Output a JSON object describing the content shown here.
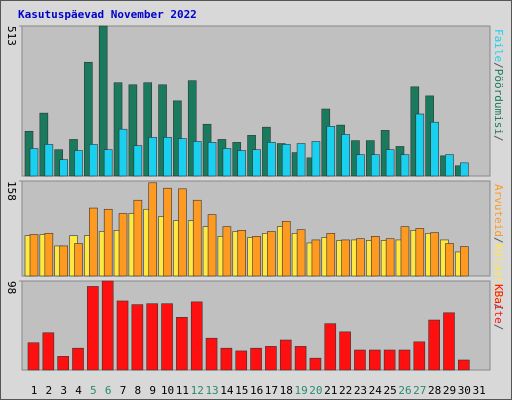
{
  "chart_data": [
    {
      "type": "bar",
      "title": "Kasutuspäevad November 2022",
      "ylim": [
        0,
        513
      ],
      "yticks": [
        513
      ],
      "series": [
        {
          "name": "Pöördumisi",
          "color": "#1a7a5e",
          "values": [
            153,
            215,
            90,
            125,
            389,
            513,
            319,
            312,
            319,
            312,
            257,
            326,
            177,
            125,
            115,
            139,
            167,
            111,
            80,
            62,
            229,
            174,
            121,
            121,
            156,
            101,
            305,
            274,
            69,
            35,
            null
          ]
        },
        {
          "name": "Faile",
          "color": "#1ad0f0",
          "values": [
            94,
            108,
            56,
            87,
            108,
            90,
            160,
            104,
            132,
            132,
            128,
            118,
            115,
            94,
            87,
            90,
            115,
            108,
            111,
            118,
            170,
            142,
            73,
            73,
            90,
            73,
            212,
            184,
            73,
            45,
            null
          ]
        }
      ]
    },
    {
      "type": "bar",
      "ylim": [
        0,
        158
      ],
      "yticks": [
        158
      ],
      "series": [
        {
          "name": "Külastusi",
          "color": "#ffe840",
          "values": [
            67,
            69,
            50,
            67,
            67,
            74,
            76,
            104,
            111,
            99,
            92,
            92,
            82,
            66,
            74,
            64,
            71,
            82,
            71,
            55,
            64,
            59,
            60,
            59,
            59,
            60,
            76,
            71,
            60,
            40,
            null
          ]
        },
        {
          "name": "Arvuteid",
          "color": "#ff9a20",
          "values": [
            69,
            71,
            50,
            54,
            113,
            111,
            104,
            126,
            155,
            146,
            145,
            126,
            102,
            82,
            76,
            66,
            74,
            91,
            77,
            60,
            71,
            60,
            62,
            66,
            62,
            82,
            79,
            72,
            54,
            49,
            null
          ]
        }
      ]
    },
    {
      "type": "bar",
      "ylim": [
        0,
        98
      ],
      "yticks": [
        98
      ],
      "categories": [
        "1",
        "2",
        "3",
        "4",
        "5",
        "6",
        "7",
        "8",
        "9",
        "10",
        "11",
        "12",
        "13",
        "14",
        "15",
        "16",
        "17",
        "18",
        "19",
        "20",
        "21",
        "22",
        "23",
        "24",
        "25",
        "26",
        "27",
        "28",
        "29",
        "30",
        "31"
      ],
      "category_colors": [
        "#000000",
        "#000000",
        "#000000",
        "#000000",
        "#2a8a70",
        "#2a8a70",
        "#000000",
        "#000000",
        "#000000",
        "#000000",
        "#000000",
        "#2a8a70",
        "#2a8a70",
        "#000000",
        "#000000",
        "#000000",
        "#000000",
        "#000000",
        "#2a8a70",
        "#2a8a70",
        "#000000",
        "#000000",
        "#000000",
        "#000000",
        "#000000",
        "#2a8a70",
        "#2a8a70",
        "#000000",
        "#000000",
        "#000000",
        "#000000"
      ],
      "series": [
        {
          "name": "KBaite",
          "color": "#ff1010",
          "values": [
            30,
            41,
            15,
            24,
            92,
            98,
            76,
            72,
            73,
            73,
            58,
            75,
            35,
            24,
            21,
            24,
            26,
            33,
            26,
            13,
            51,
            42,
            22,
            22,
            22,
            22,
            31,
            55,
            63,
            11,
            null
          ]
        }
      ]
    }
  ]
}
